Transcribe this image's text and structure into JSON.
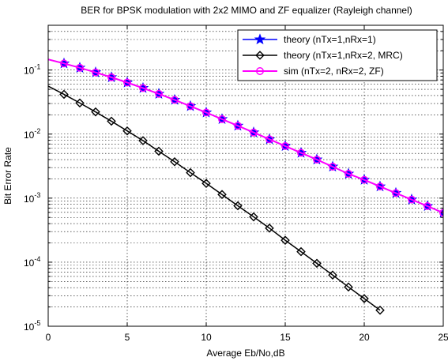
{
  "chart_data": {
    "type": "line",
    "title": "BER for BPSK modulation with 2x2 MIMO and ZF equalizer (Rayleigh channel)",
    "xlabel": "Average Eb/No,dB",
    "ylabel": "Bit Error Rate",
    "xlim": [
      0,
      25
    ],
    "ylim": [
      1e-05,
      0.5
    ],
    "yscale": "log",
    "grid": true,
    "legend_position": "top-right",
    "x_ticks": [
      {
        "value": 0,
        "label": "0"
      },
      {
        "value": 5,
        "label": "5"
      },
      {
        "value": 10,
        "label": "10"
      },
      {
        "value": 15,
        "label": "15"
      },
      {
        "value": 20,
        "label": "20"
      },
      {
        "value": 25,
        "label": "25"
      }
    ],
    "y_ticks": [
      {
        "value": 0.1,
        "base": "10",
        "exp": "-1"
      },
      {
        "value": 0.01,
        "base": "10",
        "exp": "-2"
      },
      {
        "value": 0.001,
        "base": "10",
        "exp": "-3"
      },
      {
        "value": 0.0001,
        "base": "10",
        "exp": "-4"
      },
      {
        "value": 1e-05,
        "base": "10",
        "exp": "-5"
      }
    ],
    "series": [
      {
        "name": "theory (nTx=1,nRx=1)",
        "color": "#0000ff",
        "marker": "star",
        "x": [
          0,
          1,
          2,
          3,
          4,
          5,
          6,
          7,
          8,
          9,
          10,
          11,
          12,
          13,
          14,
          15,
          16,
          17,
          18,
          19,
          20,
          21,
          22,
          23,
          24,
          25
        ],
        "y": [
          0.1464,
          0.1267,
          0.1085,
          0.0919,
          0.077,
          0.0638,
          0.0523,
          0.0425,
          0.0342,
          0.0273,
          0.0217,
          0.0171,
          0.0135,
          0.0106,
          0.0083,
          0.0065,
          0.0051,
          0.004,
          0.0031,
          0.0024,
          0.00193,
          0.00152,
          0.0012,
          0.00095,
          0.00075,
          0.00059
        ]
      },
      {
        "name": "theory (nTx=1,nRx=2, MRC)",
        "color": "#000000",
        "marker": "diamond",
        "x": [
          0,
          1,
          2,
          3,
          4,
          5,
          6,
          7,
          8,
          9,
          10,
          11,
          12,
          13,
          14,
          15,
          16,
          17,
          18,
          19,
          20,
          21
        ],
        "y": [
          0.056,
          0.0417,
          0.0306,
          0.0222,
          0.0159,
          0.0112,
          0.0079,
          0.0054,
          0.0037,
          0.0025,
          0.0017,
          0.00114,
          0.00076,
          0.00051,
          0.00034,
          0.00022,
          0.000146,
          9.6e-05,
          6.3e-05,
          4.1e-05,
          2.7e-05,
          1.78e-05
        ]
      },
      {
        "name": "sim (nTx=2, nRx=2, ZF)",
        "color": "#ff00ff",
        "marker": "circle",
        "x": [
          0,
          1,
          2,
          3,
          4,
          5,
          6,
          7,
          8,
          9,
          10,
          11,
          12,
          13,
          14,
          15,
          16,
          17,
          18,
          19,
          20,
          21,
          22,
          23,
          24,
          25
        ],
        "y": [
          0.1464,
          0.1267,
          0.1085,
          0.0919,
          0.077,
          0.0638,
          0.0523,
          0.0425,
          0.0342,
          0.0273,
          0.0217,
          0.0171,
          0.0135,
          0.0106,
          0.0083,
          0.0065,
          0.0051,
          0.004,
          0.0031,
          0.0024,
          0.00193,
          0.00152,
          0.0012,
          0.00095,
          0.00075,
          0.00059
        ]
      }
    ]
  }
}
